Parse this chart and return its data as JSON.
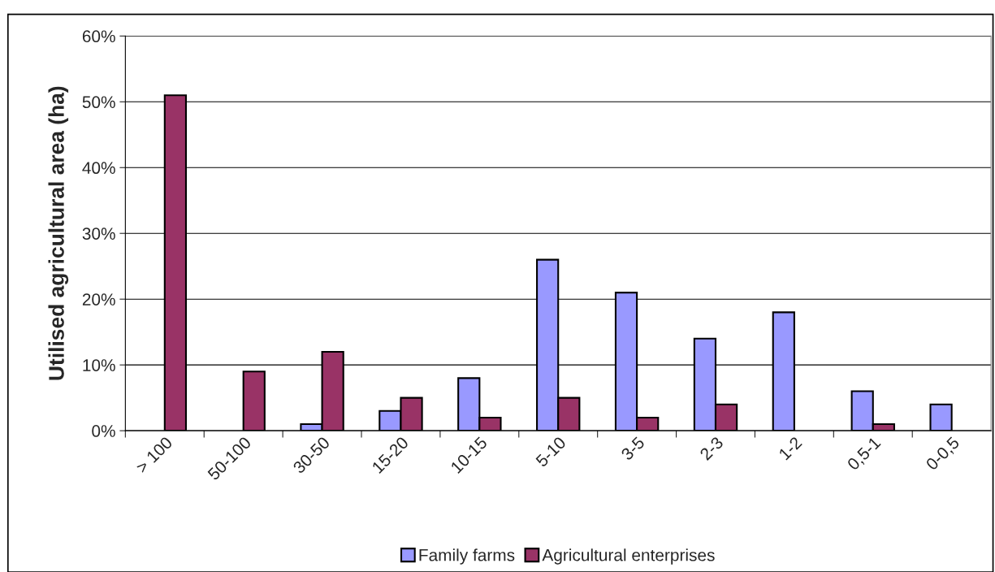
{
  "chart_data": {
    "type": "bar",
    "ylabel": "Utilised agricultural area (ha)",
    "categories": [
      "> 100",
      "50-100",
      "30-50",
      "15-20",
      "10-15",
      "5-10",
      "3-5",
      "2-3",
      "1-2",
      "0,5-1",
      "0-0,5"
    ],
    "series": [
      {
        "name": "Family farms",
        "color": "#9999ff",
        "values": [
          null,
          null,
          1,
          3,
          8,
          26,
          21,
          14,
          18,
          6,
          4
        ]
      },
      {
        "name": "Agricultural enterprises",
        "color": "#993366",
        "values": [
          51,
          9,
          12,
          5,
          2,
          5,
          2,
          4,
          null,
          1,
          null
        ]
      }
    ],
    "ylim": [
      0,
      60
    ],
    "yticks": [
      {
        "value": 0,
        "label": "0%"
      },
      {
        "value": 10,
        "label": "10%"
      },
      {
        "value": 20,
        "label": "20%"
      },
      {
        "value": 30,
        "label": "30%"
      },
      {
        "value": 40,
        "label": "40%"
      },
      {
        "value": 50,
        "label": "50%"
      },
      {
        "value": 60,
        "label": "60%"
      }
    ],
    "grid": "y",
    "legend": "bottom"
  }
}
